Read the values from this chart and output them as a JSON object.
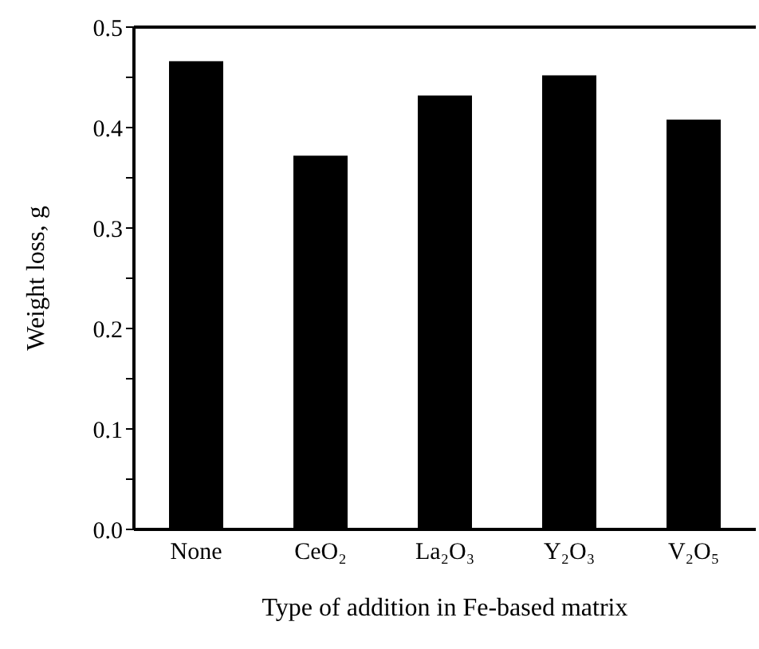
{
  "chart_data": {
    "type": "bar",
    "xlabel": "Type of addition in Fe-based matrix",
    "ylabel": "Weight loss, g",
    "categories": [
      "None",
      "CeO₂",
      "La₂O₃",
      "Y₂O₃",
      "V₂O₅"
    ],
    "values": [
      0.466,
      0.372,
      0.432,
      0.452,
      0.408
    ],
    "color": "#000000",
    "ylim": [
      0,
      0.5
    ],
    "yticks": [
      {
        "value": 0,
        "label": "0.0"
      },
      {
        "value": 0.05,
        "label": null
      },
      {
        "value": 0.1,
        "label": "0.1"
      },
      {
        "value": 0.15,
        "label": null
      },
      {
        "value": 0.2,
        "label": "0.2"
      },
      {
        "value": 0.25,
        "label": null
      },
      {
        "value": 0.3,
        "label": "0.3"
      },
      {
        "value": 0.35,
        "label": null
      },
      {
        "value": 0.4,
        "label": "0.4"
      },
      {
        "value": 0.45,
        "label": null
      },
      {
        "value": 0.5,
        "label": "0.5"
      }
    ],
    "grid": false,
    "legend": false
  }
}
